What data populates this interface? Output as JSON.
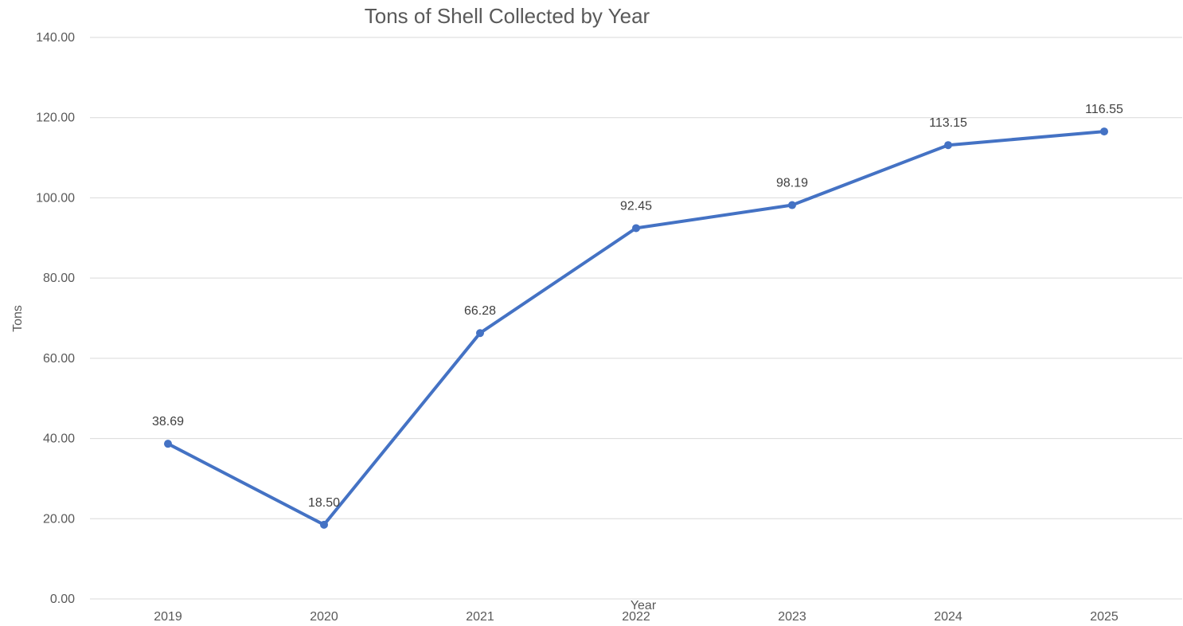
{
  "chart_data": {
    "type": "line",
    "title": "Tons of Shell Collected by Year",
    "xlabel": "Year",
    "ylabel": "Tons",
    "categories": [
      "2019",
      "2020",
      "2021",
      "2022",
      "2023",
      "2024",
      "2025"
    ],
    "y_ticks": [
      "0.00",
      "20.00",
      "40.00",
      "60.00",
      "80.00",
      "100.00",
      "120.00",
      "140.00"
    ],
    "ylim": [
      0,
      140
    ],
    "grid": true,
    "legend": "none",
    "series": [
      {
        "values": [
          38.69,
          18.5,
          66.28,
          92.45,
          98.19,
          113.15,
          116.55
        ],
        "data_labels": [
          "38.69",
          "18.50",
          "66.28",
          "92.45",
          "98.19",
          "113.15",
          "116.55"
        ],
        "color": "#4472c4"
      }
    ]
  }
}
